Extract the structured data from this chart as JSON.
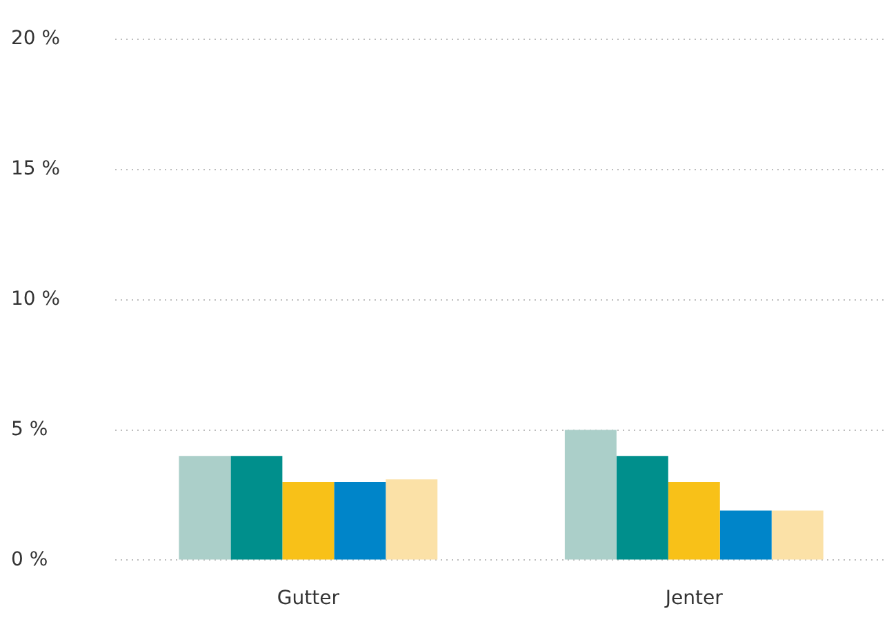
{
  "chart_data": {
    "type": "bar",
    "categories": [
      "Gutter",
      "Jenter"
    ],
    "series": [
      {
        "color": "#abcfc9",
        "values": [
          4.0,
          5.0
        ]
      },
      {
        "color": "#008f8c",
        "values": [
          4.0,
          4.0
        ]
      },
      {
        "color": "#f8c118",
        "values": [
          3.0,
          3.0
        ]
      },
      {
        "color": "#0085c9",
        "values": [
          3.0,
          1.9
        ]
      },
      {
        "color": "#fbe1a7",
        "values": [
          3.1,
          1.9
        ]
      }
    ],
    "ylim": [
      0,
      20
    ],
    "yticks": [
      {
        "value": 0,
        "label": "0 %"
      },
      {
        "value": 5,
        "label": "5 %"
      },
      {
        "value": 10,
        "label": "10 %"
      },
      {
        "value": 15,
        "label": "15 %"
      },
      {
        "value": 20,
        "label": "20 %"
      }
    ],
    "grid": "y",
    "legend": false
  }
}
